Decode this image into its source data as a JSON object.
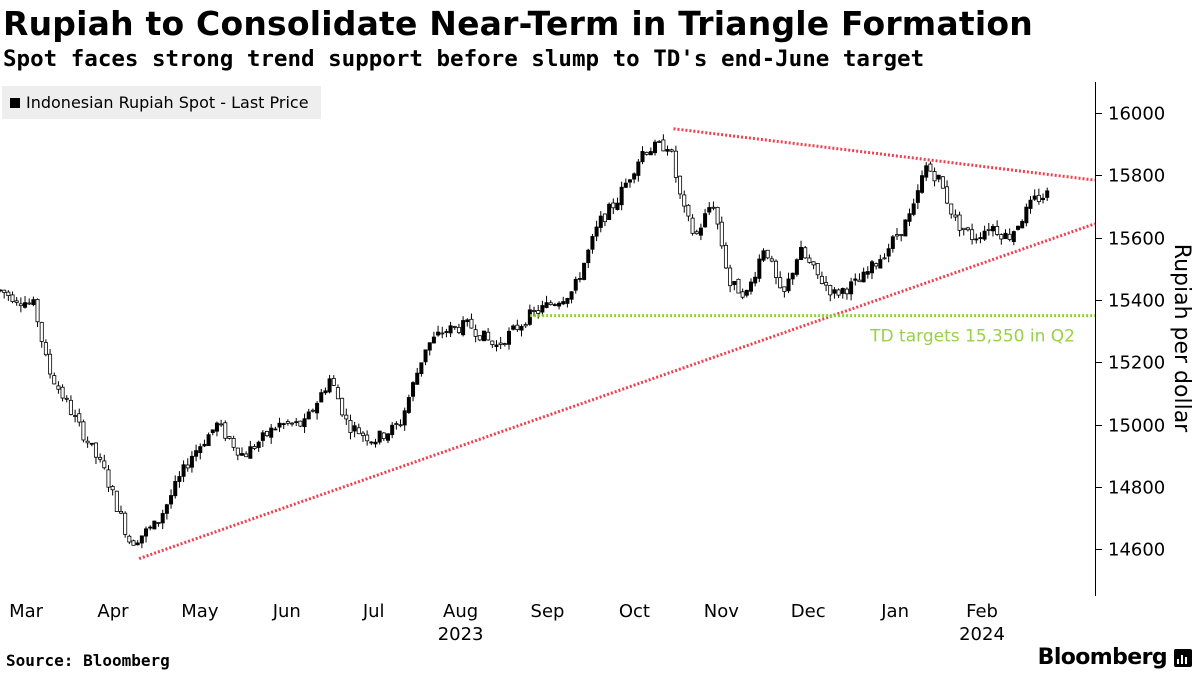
{
  "title": "Rupiah to Consolidate Near-Term in Triangle Formation",
  "subtitle": "Spot faces strong trend support before slump to TD's end-June target",
  "legend": {
    "label": "Indonesian Rupiah Spot - Last Price"
  },
  "footer": {
    "source": "Source: Bloomberg",
    "brand": "Bloomberg"
  },
  "chart_data": {
    "type": "candlestick",
    "title": "Rupiah to Consolidate Near-Term in Triangle Formation",
    "ylabel": "Rupiah per dollar",
    "ylim": [
      14450,
      16100
    ],
    "y_ticks": [
      14600,
      14800,
      15000,
      15200,
      15400,
      15600,
      15800,
      16000
    ],
    "xlim": [
      0,
      12.6
    ],
    "x_ticks": [
      {
        "label": "Mar",
        "pos": 0.3
      },
      {
        "label": "Apr",
        "pos": 1.3
      },
      {
        "label": "May",
        "pos": 2.3
      },
      {
        "label": "Jun",
        "pos": 3.3
      },
      {
        "label": "Jul",
        "pos": 4.3
      },
      {
        "label": "Aug",
        "pos": 5.3
      },
      {
        "label": "Sep",
        "pos": 6.3
      },
      {
        "label": "Oct",
        "pos": 7.3
      },
      {
        "label": "Nov",
        "pos": 8.3
      },
      {
        "label": "Dec",
        "pos": 9.3
      },
      {
        "label": "Jan",
        "pos": 10.3
      },
      {
        "label": "Feb",
        "pos": 11.3
      }
    ],
    "year_labels": [
      {
        "label": "2023",
        "pos": 5.3
      },
      {
        "label": "2024",
        "pos": 11.3
      }
    ],
    "anchors": [
      [
        0,
        15430
      ],
      [
        0.4,
        15380
      ],
      [
        0.55,
        15180
      ],
      [
        0.9,
        15000
      ],
      [
        1.2,
        14850
      ],
      [
        1.5,
        14620
      ],
      [
        1.8,
        14680
      ],
      [
        2.2,
        14900
      ],
      [
        2.5,
        15000
      ],
      [
        2.8,
        14900
      ],
      [
        3.2,
        15000
      ],
      [
        3.5,
        15000
      ],
      [
        3.8,
        15150
      ],
      [
        4.0,
        15000
      ],
      [
        4.3,
        14950
      ],
      [
        4.6,
        15000
      ],
      [
        4.9,
        15250
      ],
      [
        5.1,
        15300
      ],
      [
        5.4,
        15320
      ],
      [
        5.7,
        15250
      ],
      [
        6.1,
        15350
      ],
      [
        6.6,
        15430
      ],
      [
        6.9,
        15650
      ],
      [
        7.1,
        15720
      ],
      [
        7.4,
        15880
      ],
      [
        7.7,
        15900
      ],
      [
        7.85,
        15700
      ],
      [
        8.0,
        15600
      ],
      [
        8.2,
        15720
      ],
      [
        8.4,
        15450
      ],
      [
        8.6,
        15420
      ],
      [
        8.8,
        15580
      ],
      [
        9.0,
        15400
      ],
      [
        9.2,
        15560
      ],
      [
        9.4,
        15480
      ],
      [
        9.6,
        15420
      ],
      [
        9.9,
        15460
      ],
      [
        10.2,
        15560
      ],
      [
        10.5,
        15680
      ],
      [
        10.65,
        15830
      ],
      [
        10.8,
        15790
      ],
      [
        11.0,
        15650
      ],
      [
        11.2,
        15600
      ],
      [
        11.4,
        15640
      ],
      [
        11.6,
        15600
      ],
      [
        11.9,
        15720
      ],
      [
        12.05,
        15740
      ]
    ],
    "resistance_line": {
      "from": [
        7.75,
        15950
      ],
      "to": [
        12.6,
        15785
      ]
    },
    "support_line": {
      "from": [
        1.6,
        14570
      ],
      "to": [
        12.6,
        15645
      ]
    },
    "target_line": {
      "value": 15350,
      "x_start": 6.1,
      "x_end": 12.6
    },
    "annotation": "TD targets 15,350 in Q2",
    "colors": {
      "candle": "#000000",
      "trend_line": "#ee4050",
      "target_line": "#8ecf3a",
      "annotation": "#99d04a"
    }
  }
}
